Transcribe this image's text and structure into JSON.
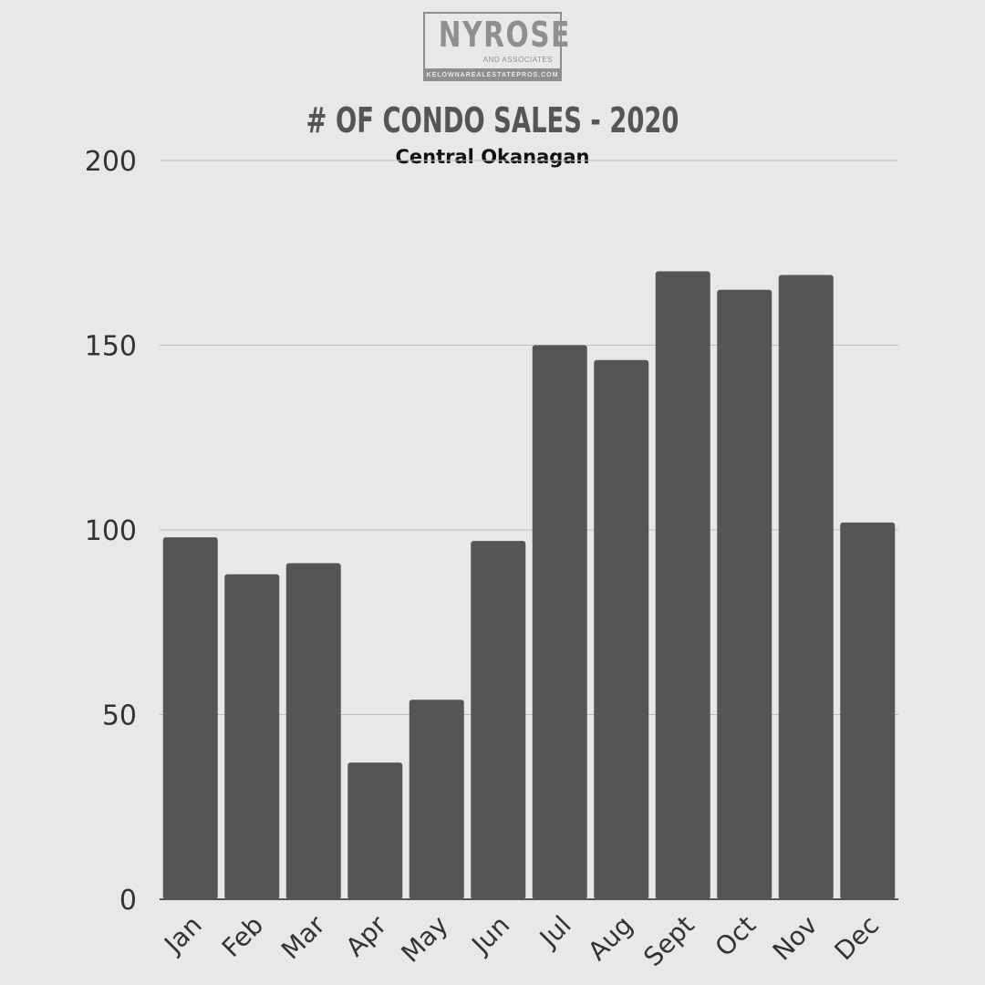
{
  "logo": {
    "name": "NYROSE",
    "tagline": "AND ASSOCIATES",
    "url": "KELOWNAREALESTATEPROS.COM"
  },
  "chart_data": {
    "type": "bar",
    "title": "# OF CONDO SALES - 2020",
    "subtitle": "Central Okanagan",
    "xlabel": "",
    "ylabel": "",
    "categories": [
      "Jan",
      "Feb",
      "Mar",
      "Apr",
      "May",
      "Jun",
      "Jul",
      "Aug",
      "Sept",
      "Oct",
      "Nov",
      "Dec"
    ],
    "values": [
      98,
      88,
      91,
      37,
      54,
      97,
      150,
      146,
      170,
      165,
      169,
      102
    ],
    "ylim": [
      0,
      200
    ],
    "yticks": [
      0,
      50,
      100,
      150,
      200
    ],
    "grid": true,
    "legend": "none",
    "colors": {
      "bar": "#555555",
      "grid": "#bdbdbd",
      "axis": "#555555",
      "background": "#e8e8e8"
    }
  }
}
